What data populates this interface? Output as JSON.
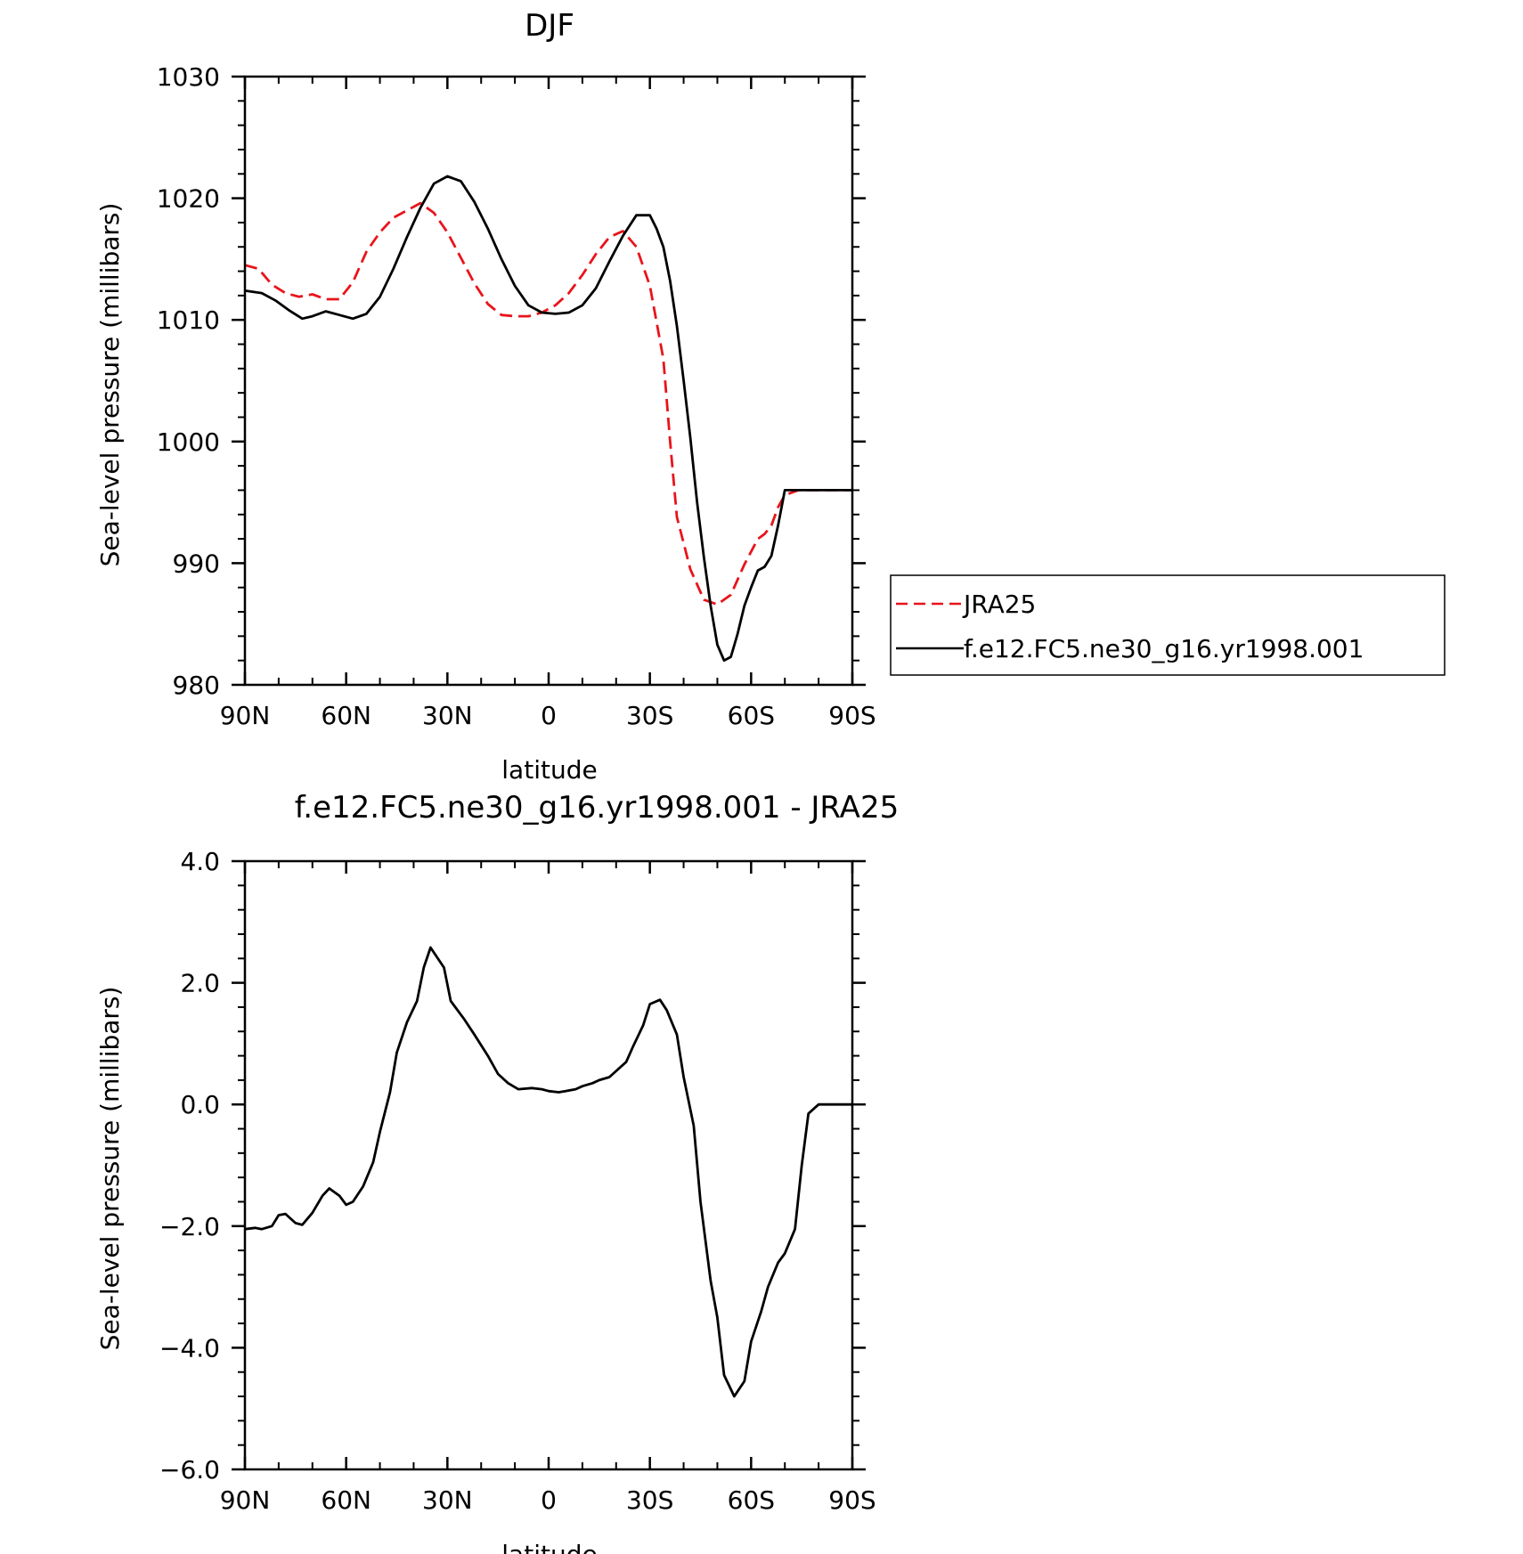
{
  "chart_data": [
    {
      "type": "line",
      "title": "DJF",
      "xlabel": "latitude",
      "ylabel": "Sea-level pressure (millibars)",
      "xlim": [
        90,
        -90
      ],
      "ylim": [
        980,
        1030
      ],
      "x_ticks": [
        90,
        60,
        30,
        0,
        -30,
        -60,
        -90
      ],
      "x_tick_labels": [
        "90N",
        "60N",
        "30N",
        "0",
        "30S",
        "60S",
        "90S"
      ],
      "y_ticks": [
        980,
        990,
        1000,
        1010,
        1020,
        1030
      ],
      "y_tick_labels": [
        "980",
        "990",
        "1000",
        "1010",
        "1020",
        "1030"
      ],
      "legend": "right",
      "series": [
        {
          "name": "JRA25",
          "color": "#e8141b",
          "dash": "dashed",
          "x": [
            90,
            86,
            82,
            78,
            74,
            70,
            66,
            62,
            58,
            54,
            50,
            46,
            42,
            38,
            34,
            30,
            26,
            22,
            18,
            14,
            10,
            6,
            2,
            -2,
            -6,
            -10,
            -14,
            -18,
            -22,
            -26,
            -30,
            -34,
            -36,
            -38,
            -42,
            -46,
            -50,
            -54,
            -58,
            -62,
            -64,
            -66,
            -68,
            -70,
            -74,
            -78,
            -82,
            -86,
            -90
          ],
          "y": [
            1014.5,
            1014.2,
            1012.9,
            1012.2,
            1011.9,
            1012.1,
            1011.7,
            1011.7,
            1013.1,
            1015.6,
            1017.2,
            1018.4,
            1019.0,
            1019.6,
            1018.8,
            1017.2,
            1015.1,
            1013.0,
            1011.3,
            1010.4,
            1010.3,
            1010.3,
            1010.6,
            1011.2,
            1012.2,
            1013.7,
            1015.4,
            1016.8,
            1017.3,
            1016.0,
            1012.8,
            1006.8,
            1000.0,
            993.8,
            989.5,
            987.0,
            986.6,
            987.4,
            989.9,
            992.0,
            992.4,
            993.1,
            994.6,
            995.6,
            996.0,
            996.0,
            996.0,
            996.0,
            996.0
          ]
        },
        {
          "name": "f.e12.FC5.ne30_g16.yr1998.001",
          "color": "#000000",
          "dash": "solid",
          "x": [
            90,
            85,
            81,
            77,
            73,
            70,
            66,
            62,
            58,
            54,
            50,
            46,
            42,
            38,
            34,
            30,
            26,
            22,
            18,
            14,
            10,
            6,
            2,
            -2,
            -6,
            -10,
            -14,
            -18,
            -22,
            -26,
            -30,
            -32,
            -34,
            -36,
            -38,
            -40,
            -42,
            -44,
            -46,
            -48,
            -50,
            -52,
            -54,
            -56,
            -58,
            -60,
            -62,
            -64,
            -66,
            -68,
            -70,
            -72,
            -74,
            -76,
            -78,
            -80,
            -82,
            -84,
            -86,
            -88,
            -90
          ],
          "y": [
            1012.4,
            1012.2,
            1011.6,
            1010.8,
            1010.1,
            1010.3,
            1010.7,
            1010.4,
            1010.1,
            1010.5,
            1011.9,
            1014.2,
            1016.8,
            1019.2,
            1021.2,
            1021.8,
            1021.4,
            1019.7,
            1017.5,
            1015.0,
            1012.8,
            1011.2,
            1010.6,
            1010.5,
            1010.6,
            1011.2,
            1012.6,
            1014.8,
            1016.9,
            1018.6,
            1018.6,
            1017.5,
            1016.0,
            1013.2,
            1009.5,
            1005.0,
            1000.3,
            995.0,
            990.5,
            986.5,
            983.3,
            982.0,
            982.3,
            984.2,
            986.5,
            988.0,
            989.4,
            989.7,
            990.6,
            993.1,
            996.0,
            996.0,
            996.0,
            996.0,
            996.0,
            996.0,
            996.0,
            996.0,
            996.0,
            996.0,
            996.0
          ]
        }
      ]
    },
    {
      "type": "line",
      "title": "f.e12.FC5.ne30_g16.yr1998.001 - JRA25",
      "xlabel": "latitude",
      "ylabel": "Sea-level pressure (millibars)",
      "xlim": [
        90,
        -90
      ],
      "ylim": [
        -6,
        4
      ],
      "x_ticks": [
        90,
        60,
        30,
        0,
        -30,
        -60,
        -90
      ],
      "x_tick_labels": [
        "90N",
        "60N",
        "30N",
        "0",
        "30S",
        "60S",
        "90S"
      ],
      "y_ticks": [
        -6,
        -4,
        -2,
        0,
        2,
        4
      ],
      "y_tick_labels": [
        "-6.0",
        "-4.0",
        "-2.0",
        "0.0",
        "2.0",
        "4.0"
      ],
      "series": [
        {
          "color": "#000000",
          "dash": "solid",
          "x": [
            90,
            87,
            85,
            82,
            80,
            78,
            75,
            73,
            70,
            67,
            65,
            62,
            60,
            58,
            55,
            52,
            50,
            47,
            45,
            42,
            39,
            37,
            35,
            31,
            29,
            25,
            22,
            18,
            15,
            12,
            9,
            5,
            2,
            0,
            -3,
            -5,
            -8,
            -10,
            -13,
            -15,
            -18,
            -20,
            -23,
            -25,
            -28,
            -30,
            -33,
            -35,
            -38,
            -40,
            -43,
            -45,
            -48,
            -50,
            -52,
            -55,
            -58,
            -60,
            -63,
            -65,
            -68,
            -70,
            -73,
            -75,
            -77,
            -80,
            -83,
            -85,
            -87,
            -90
          ],
          "y": [
            -2.05,
            -2.03,
            -2.05,
            -2.0,
            -1.82,
            -1.8,
            -1.95,
            -1.98,
            -1.78,
            -1.5,
            -1.38,
            -1.5,
            -1.65,
            -1.6,
            -1.35,
            -0.95,
            -0.45,
            0.2,
            0.85,
            1.35,
            1.7,
            2.25,
            2.58,
            2.25,
            1.7,
            1.4,
            1.15,
            0.8,
            0.5,
            0.35,
            0.25,
            0.27,
            0.25,
            0.22,
            0.2,
            0.22,
            0.25,
            0.3,
            0.35,
            0.4,
            0.45,
            0.55,
            0.7,
            0.95,
            1.3,
            1.65,
            1.72,
            1.55,
            1.15,
            0.45,
            -0.35,
            -1.6,
            -2.9,
            -3.5,
            -4.45,
            -4.8,
            -4.55,
            -3.9,
            -3.4,
            -3.0,
            -2.6,
            -2.45,
            -2.05,
            -1.0,
            -0.15,
            0.0,
            0.0,
            0.0,
            0.0,
            0.0
          ]
        }
      ]
    }
  ],
  "legend": {
    "items": [
      {
        "label": "JRA25",
        "color": "#e8141b",
        "dash": "dashed"
      },
      {
        "label": "f.e12.FC5.ne30_g16.yr1998.001",
        "color": "#000000",
        "dash": "solid"
      }
    ]
  }
}
